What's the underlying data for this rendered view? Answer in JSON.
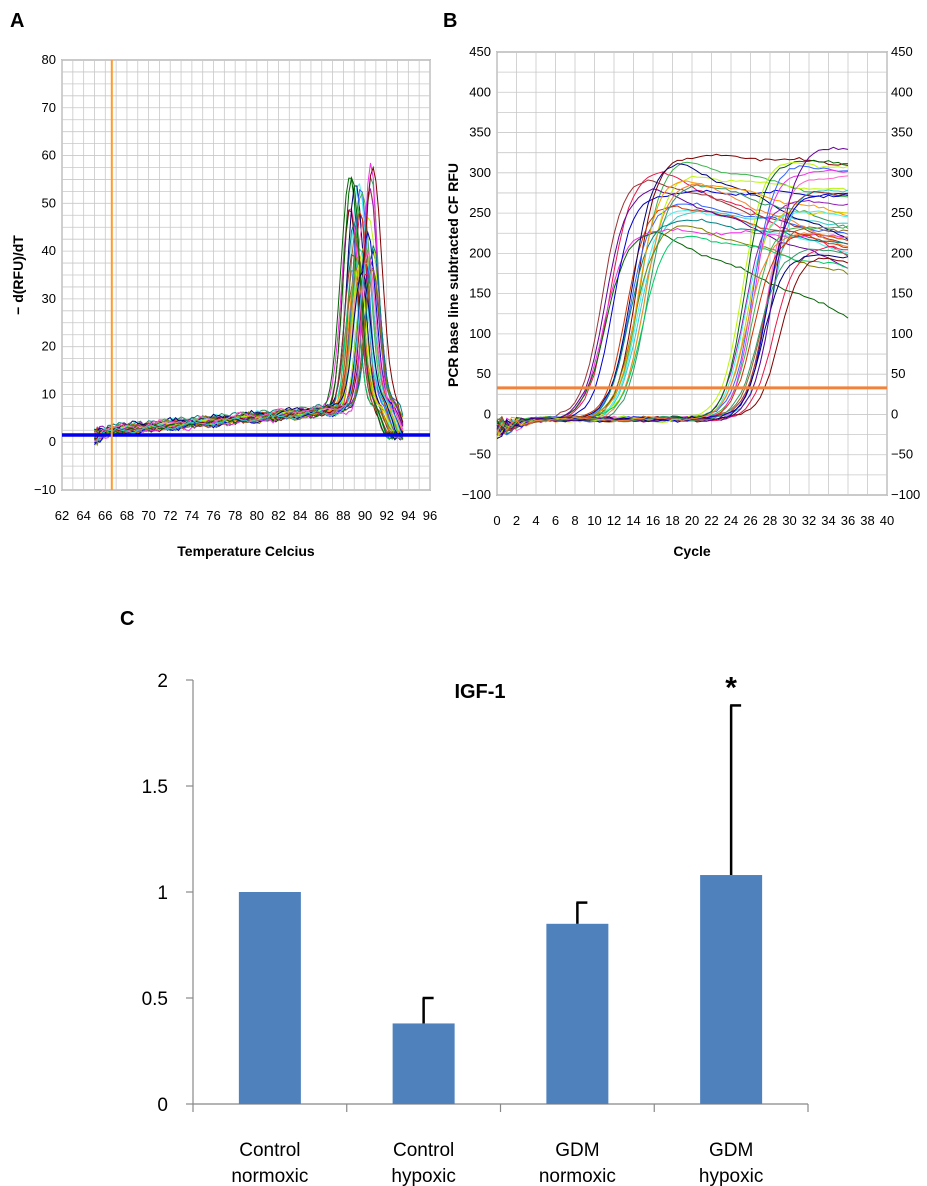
{
  "panels": {
    "a": "A",
    "b": "B",
    "c": "C"
  },
  "chart_data": [
    {
      "id": "A",
      "type": "line",
      "xlabel": "Temperature Celcius",
      "ylabel": "− d(RFU)/dT",
      "xlim": [
        62,
        96
      ],
      "ylim": [
        -10,
        80
      ],
      "xticks": [
        62,
        64,
        66,
        68,
        70,
        72,
        74,
        76,
        78,
        80,
        82,
        84,
        86,
        88,
        90,
        92,
        94,
        96
      ],
      "yticks": [
        -10,
        0,
        10,
        20,
        30,
        40,
        50,
        60,
        70,
        80
      ],
      "ytick_labels": [
        "−10",
        "0",
        "10",
        "20",
        "30",
        "40",
        "50",
        "60",
        "70",
        "80"
      ],
      "threshold_y": 1.5,
      "threshold_color": "#0000ee",
      "marker_x": 66.6,
      "marker_color": "#ff9a2e",
      "grid": true,
      "note": "melt curves of many samples; peaks near 88–90 °C",
      "series_count": 40
    },
    {
      "id": "B",
      "type": "line",
      "xlabel": "Cycle",
      "ylabel": "PCR base line subtracted CF RFU",
      "xlim": [
        0,
        40
      ],
      "ylim": [
        -100,
        450
      ],
      "xticks": [
        0,
        2,
        4,
        6,
        8,
        10,
        12,
        14,
        16,
        18,
        20,
        22,
        24,
        26,
        28,
        30,
        32,
        34,
        36,
        38,
        40
      ],
      "yticks": [
        -100,
        -50,
        0,
        50,
        100,
        150,
        200,
        250,
        300,
        350,
        400,
        450
      ],
      "ytick_labels": [
        "−100",
        "−50",
        "0",
        "50",
        "100",
        "150",
        "200",
        "250",
        "300",
        "350",
        "400",
        "450"
      ],
      "threshold_y": 33,
      "threshold_color": "#f0823c",
      "grid": true,
      "series_count": 40
    },
    {
      "id": "C",
      "type": "bar",
      "title": "IGF-1",
      "categories": [
        "Control\nnormoxic",
        "Control\nhypoxic",
        "GDM\nnormoxic",
        "GDM\nhypoxic"
      ],
      "category_lines": [
        [
          "Control",
          "normoxic"
        ],
        [
          "Control",
          "hypoxic"
        ],
        [
          "GDM",
          "normoxic"
        ],
        [
          "GDM",
          "hypoxic"
        ]
      ],
      "values": [
        1.0,
        0.38,
        0.85,
        1.08
      ],
      "errors": [
        0,
        0.12,
        0.1,
        0.8
      ],
      "ylim": [
        0,
        2
      ],
      "yticks": [
        0,
        0.5,
        1,
        1.5,
        2
      ],
      "ytick_labels": [
        "0",
        "0.5",
        "1",
        "1.5",
        "2"
      ],
      "annotation": "*",
      "annotation_index": 3,
      "bar_color": "#4f81bd"
    }
  ]
}
